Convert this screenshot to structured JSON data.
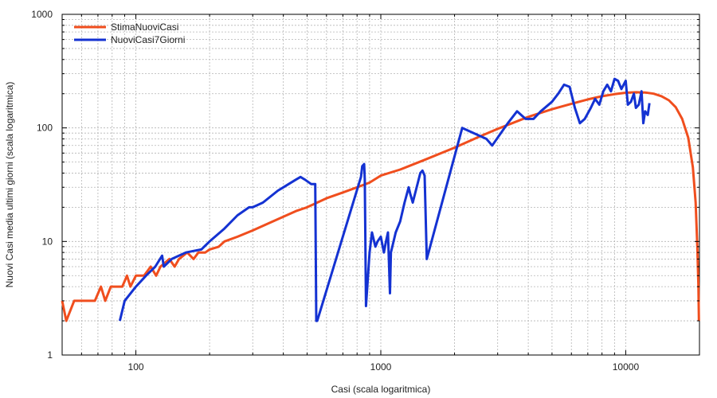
{
  "chart_data": {
    "type": "line",
    "title": "",
    "xlabel": "Casi (scala logaritmica)",
    "ylabel": "Nuovi Casi media ultimi giorni (scala logaritmica)",
    "xscale": "log",
    "yscale": "log",
    "xlim": [
      50,
      20000
    ],
    "ylim": [
      1,
      1000
    ],
    "grid": true,
    "legend_position": "top-left",
    "x_ticks": [
      "100",
      "1000",
      "10000"
    ],
    "y_ticks": [
      "1",
      "10",
      "100",
      "1000"
    ],
    "series": [
      {
        "name": "StimaNuoviCasi",
        "color": "#f04e1e",
        "points": [
          [
            50,
            3
          ],
          [
            52,
            2
          ],
          [
            56,
            3
          ],
          [
            62,
            3
          ],
          [
            68,
            3
          ],
          [
            72,
            4
          ],
          [
            75,
            3
          ],
          [
            79,
            4
          ],
          [
            88,
            4
          ],
          [
            92,
            5
          ],
          [
            95,
            4
          ],
          [
            100,
            5
          ],
          [
            108,
            5
          ],
          [
            115,
            6
          ],
          [
            121,
            5
          ],
          [
            126,
            6
          ],
          [
            137,
            7
          ],
          [
            144,
            6
          ],
          [
            150,
            7
          ],
          [
            162,
            8
          ],
          [
            172,
            7
          ],
          [
            180,
            8
          ],
          [
            192,
            8
          ],
          [
            200,
            8.5
          ],
          [
            218,
            9
          ],
          [
            230,
            10
          ],
          [
            260,
            11
          ],
          [
            300,
            12.5
          ],
          [
            350,
            14.5
          ],
          [
            400,
            16.5
          ],
          [
            450,
            18.5
          ],
          [
            500,
            20
          ],
          [
            550,
            22
          ],
          [
            600,
            24
          ],
          [
            700,
            27
          ],
          [
            800,
            30
          ],
          [
            900,
            33
          ],
          [
            1000,
            38
          ],
          [
            1200,
            43
          ],
          [
            1500,
            52
          ],
          [
            2000,
            67
          ],
          [
            2500,
            83
          ],
          [
            3000,
            98
          ],
          [
            4000,
            125
          ],
          [
            5000,
            146
          ],
          [
            6000,
            163
          ],
          [
            7000,
            178
          ],
          [
            8000,
            190
          ],
          [
            9000,
            198
          ],
          [
            10000,
            204
          ],
          [
            11000,
            206
          ],
          [
            12000,
            205
          ],
          [
            13000,
            200
          ],
          [
            14000,
            190
          ],
          [
            15000,
            175
          ],
          [
            16000,
            152
          ],
          [
            17000,
            120
          ],
          [
            18000,
            82
          ],
          [
            18800,
            45
          ],
          [
            19300,
            22
          ],
          [
            19600,
            9
          ],
          [
            19800,
            4
          ],
          [
            19900,
            2
          ]
        ]
      },
      {
        "name": "NuoviCasi7Giorni",
        "color": "#1432d2",
        "points": [
          [
            86,
            2
          ],
          [
            90,
            3
          ],
          [
            100,
            4
          ],
          [
            110,
            5
          ],
          [
            120,
            6
          ],
          [
            128,
            7.5
          ],
          [
            130,
            6
          ],
          [
            140,
            7
          ],
          [
            160,
            8
          ],
          [
            185,
            8.5
          ],
          [
            200,
            10
          ],
          [
            230,
            13
          ],
          [
            260,
            17
          ],
          [
            280,
            19
          ],
          [
            290,
            20
          ],
          [
            300,
            20
          ],
          [
            330,
            22
          ],
          [
            380,
            28
          ],
          [
            400,
            30
          ],
          [
            420,
            32
          ],
          [
            450,
            35
          ],
          [
            470,
            37
          ],
          [
            490,
            35
          ],
          [
            520,
            32
          ],
          [
            540,
            32
          ],
          [
            545,
            2
          ],
          [
            550,
            2
          ],
          [
            830,
            37
          ],
          [
            840,
            46
          ],
          [
            855,
            48
          ],
          [
            860,
            35
          ],
          [
            870,
            2.7
          ],
          [
            900,
            8
          ],
          [
            920,
            12
          ],
          [
            950,
            9
          ],
          [
            970,
            10
          ],
          [
            1000,
            11
          ],
          [
            1030,
            8
          ],
          [
            1050,
            10
          ],
          [
            1070,
            12
          ],
          [
            1090,
            3.5
          ],
          [
            1100,
            8
          ],
          [
            1150,
            12
          ],
          [
            1200,
            15
          ],
          [
            1250,
            22
          ],
          [
            1300,
            30
          ],
          [
            1320,
            26
          ],
          [
            1350,
            22
          ],
          [
            1450,
            40
          ],
          [
            1480,
            42
          ],
          [
            1510,
            38
          ],
          [
            1540,
            7
          ],
          [
            2150,
            100
          ],
          [
            2700,
            80
          ],
          [
            2850,
            70
          ],
          [
            3300,
            110
          ],
          [
            3600,
            140
          ],
          [
            3900,
            120
          ],
          [
            4200,
            120
          ],
          [
            4500,
            140
          ],
          [
            5000,
            170
          ],
          [
            5300,
            200
          ],
          [
            5600,
            240
          ],
          [
            5900,
            230
          ],
          [
            6200,
            150
          ],
          [
            6500,
            110
          ],
          [
            6800,
            120
          ],
          [
            7200,
            150
          ],
          [
            7500,
            180
          ],
          [
            7800,
            160
          ],
          [
            8100,
            210
          ],
          [
            8400,
            240
          ],
          [
            8700,
            210
          ],
          [
            9000,
            270
          ],
          [
            9300,
            260
          ],
          [
            9600,
            220
          ],
          [
            10000,
            260
          ],
          [
            10200,
            160
          ],
          [
            10500,
            170
          ],
          [
            10800,
            200
          ],
          [
            11000,
            150
          ],
          [
            11300,
            160
          ],
          [
            11600,
            210
          ],
          [
            11800,
            110
          ],
          [
            12000,
            140
          ],
          [
            12300,
            130
          ],
          [
            12500,
            165
          ]
        ]
      }
    ]
  }
}
